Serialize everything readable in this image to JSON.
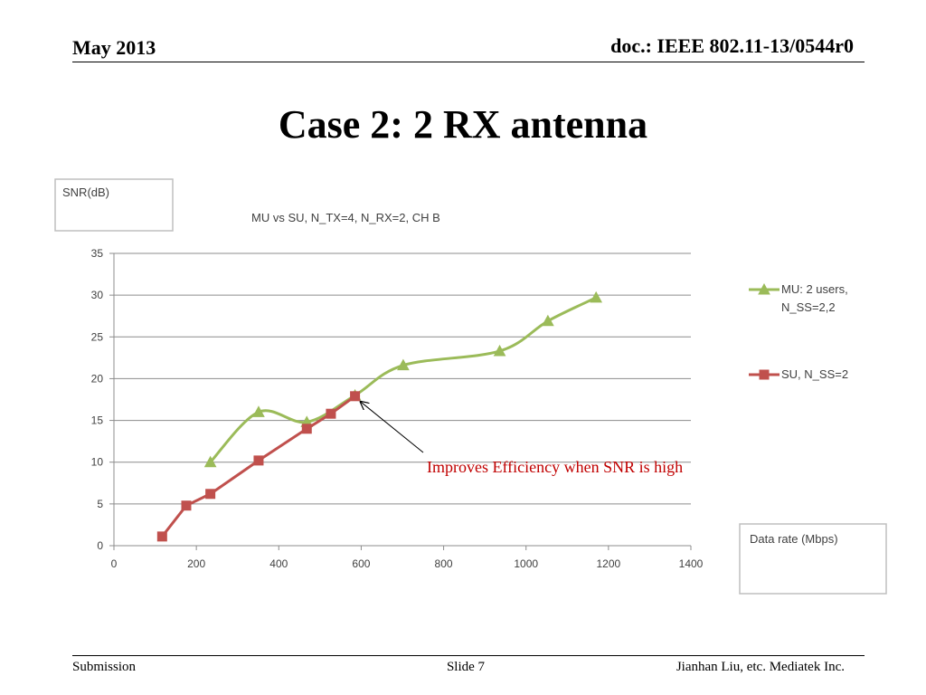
{
  "header": {
    "left": "May 2013",
    "right": "doc.: IEEE 802.11-13/0544r0"
  },
  "slide_title": "Case 2: 2 RX antenna",
  "footer": {
    "left": "Submission",
    "center": "Slide 7",
    "right": "Jianhan Liu, etc. Mediatek Inc."
  },
  "chart_data": {
    "type": "line",
    "title": "MU vs SU, N_TX=4,  N_RX=2, CH B",
    "ylabel": "SNR(dB)",
    "xlabel": "Data rate (Mbps)",
    "xlim": [
      0,
      1400
    ],
    "ylim": [
      0,
      35
    ],
    "xticks": [
      0,
      200,
      400,
      600,
      800,
      1000,
      1200,
      1400
    ],
    "yticks": [
      0,
      5,
      10,
      15,
      20,
      25,
      30,
      35
    ],
    "grid": "horizontal",
    "legend_position": "right",
    "series": [
      {
        "name": "MU: 2 users, N_SS=2,2",
        "legend_lines": [
          "MU: 2 users,",
          "N_SS=2,2"
        ],
        "color": "#9BBB59",
        "marker": "triangle",
        "smooth": true,
        "points": [
          [
            234,
            10
          ],
          [
            351,
            16
          ],
          [
            468,
            14.8
          ],
          [
            585,
            18
          ],
          [
            702,
            21.6
          ],
          [
            936,
            23.3
          ],
          [
            1053,
            26.9
          ],
          [
            1170,
            29.7
          ]
        ]
      },
      {
        "name": "SU, N_SS=2",
        "legend_lines": [
          "SU, N_SS=2"
        ],
        "color": "#C0504D",
        "marker": "square",
        "smooth": false,
        "points": [
          [
            117,
            1.1
          ],
          [
            175.5,
            4.8
          ],
          [
            234,
            6.2
          ],
          [
            351,
            10.2
          ],
          [
            468,
            14
          ],
          [
            526.5,
            15.8
          ],
          [
            585,
            17.9
          ]
        ]
      }
    ],
    "annotation": {
      "text": "Improves Efficiency when SNR is high",
      "color": "#C00000",
      "target": [
        585,
        17.9
      ]
    }
  }
}
